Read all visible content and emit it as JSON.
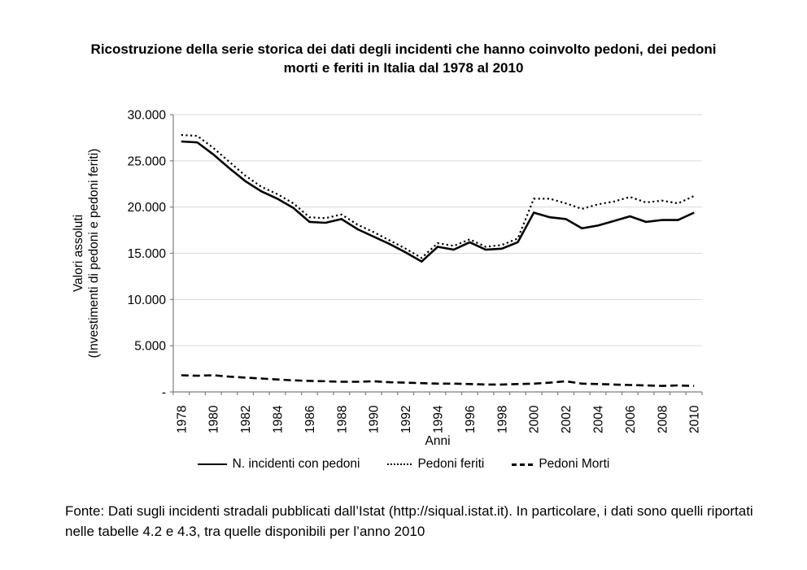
{
  "title": "Ricostruzione della serie storica dei dati degli incidenti che hanno coinvolto pedoni, dei pedoni morti e feriti in Italia dal 1978 al 2010",
  "source_note": "Fonte: Dati sugli incidenti stradali pubblicati dall’Istat (http://siqual.istat.it). In particolare, i dati sono quelli riportati nelle tabelle 4.2 e 4.3, tra quelle disponibili per l’anno 2010",
  "chart_data": {
    "type": "line",
    "x": [
      1978,
      1979,
      1980,
      1981,
      1982,
      1983,
      1984,
      1985,
      1986,
      1987,
      1988,
      1989,
      1990,
      1991,
      1992,
      1993,
      1994,
      1995,
      1996,
      1997,
      1998,
      1999,
      2000,
      2001,
      2002,
      2003,
      2004,
      2005,
      2006,
      2007,
      2008,
      2009,
      2010
    ],
    "series": [
      {
        "name": "N. incidenti con pedoni",
        "style": "solid",
        "values": [
          27100,
          27000,
          25700,
          24200,
          22800,
          21700,
          20900,
          19900,
          18400,
          18300,
          18700,
          17600,
          16800,
          16000,
          15100,
          14100,
          15700,
          15400,
          16200,
          15400,
          15500,
          16200,
          19400,
          18900,
          18700,
          17700,
          18000,
          18500,
          19000,
          18400,
          18600,
          18600,
          19400
        ]
      },
      {
        "name": "Pedoni feriti",
        "style": "dotted",
        "values": [
          27800,
          27700,
          26400,
          24900,
          23400,
          22200,
          21400,
          20400,
          18900,
          18800,
          19200,
          18100,
          17300,
          16400,
          15500,
          14500,
          16100,
          15800,
          16500,
          15700,
          15900,
          16600,
          20900,
          20900,
          20400,
          19800,
          20300,
          20600,
          21100,
          20500,
          20700,
          20400,
          21200
        ]
      },
      {
        "name": "Pedoni Morti",
        "style": "dashed",
        "values": [
          1800,
          1750,
          1800,
          1650,
          1550,
          1450,
          1350,
          1250,
          1200,
          1150,
          1100,
          1100,
          1150,
          1050,
          1000,
          950,
          900,
          900,
          850,
          800,
          800,
          850,
          900,
          1000,
          1150,
          900,
          850,
          800,
          750,
          700,
          650,
          700,
          650
        ]
      }
    ],
    "xlabel": "Anni",
    "ylabel_line1": "Valori assoluti",
    "ylabel_line2": "(Investimenti di pedoni e pedoni feriti)",
    "ylim": [
      0,
      30000
    ],
    "y_tick_interval": 5000,
    "y_tick_labels": [
      "-",
      "5.000",
      "10.000",
      "15.000",
      "20.000",
      "25.000",
      "30.000"
    ],
    "x_tick_label_interval": 2,
    "grid": true,
    "legend_position": "bottom",
    "colors": {
      "line": "#000000",
      "grid": "#d9d9d9",
      "axis": "#7f7f7f",
      "text": "#000000"
    }
  }
}
